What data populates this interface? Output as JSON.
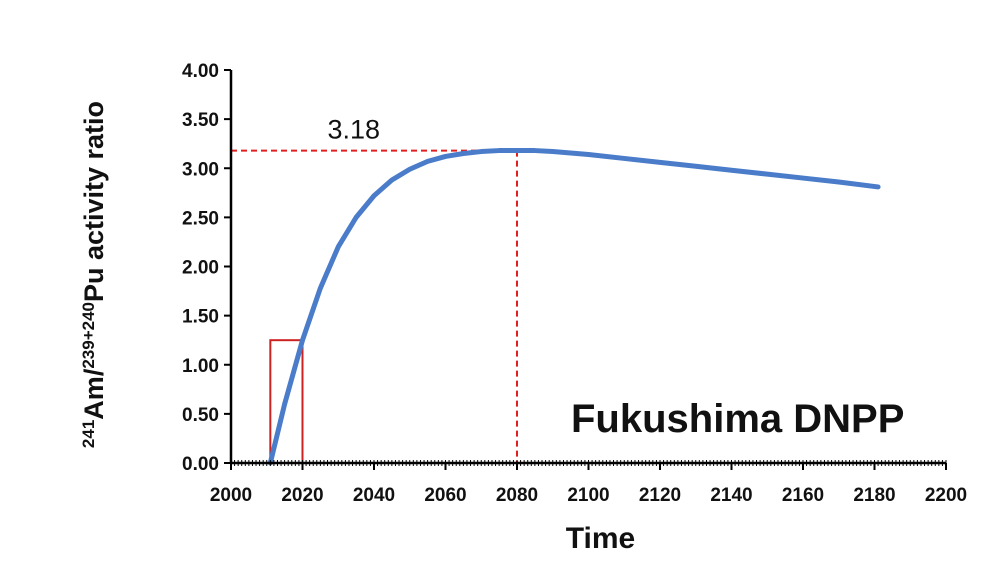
{
  "chart_data": {
    "type": "line",
    "title": "",
    "xlabel": "Time",
    "ylabel": {
      "sup1": "241",
      "part1": "Am/",
      "sup2": "239+240",
      "part2": "Pu activity ratio"
    },
    "xlim": [
      2000,
      2200
    ],
    "ylim": [
      0,
      4
    ],
    "x_ticks": [
      "2000",
      "2020",
      "2040",
      "2060",
      "2080",
      "2100",
      "2120",
      "2140",
      "2160",
      "2180",
      "2200"
    ],
    "y_ticks": [
      "0.00",
      "0.50",
      "1.00",
      "1.50",
      "2.00",
      "2.50",
      "3.00",
      "3.50",
      "4.00"
    ],
    "grid": false,
    "series": [
      {
        "color": "#4a7cc9",
        "x": [
          2011,
          2015,
          2020,
          2025,
          2030,
          2035,
          2040,
          2045,
          2050,
          2055,
          2060,
          2065,
          2070,
          2075,
          2080,
          2085,
          2090,
          2100,
          2110,
          2120,
          2130,
          2140,
          2150,
          2160,
          2170,
          2181
        ],
        "y": [
          0.0,
          0.6,
          1.25,
          1.78,
          2.2,
          2.5,
          2.72,
          2.88,
          2.99,
          3.07,
          3.12,
          3.15,
          3.17,
          3.18,
          3.18,
          3.18,
          3.17,
          3.14,
          3.1,
          3.06,
          3.02,
          2.98,
          2.94,
          2.9,
          2.86,
          2.81
        ]
      }
    ],
    "annotations": {
      "peak_label": "3.18",
      "peak_x": 2080,
      "peak_y": 3.18,
      "guide_color": "#e02020",
      "highlight_box": {
        "x0": 2011,
        "x1": 2020,
        "y0": 0,
        "y1": 1.25,
        "color": "#cc2222"
      },
      "site_label": "Fukushima DNPP"
    }
  }
}
